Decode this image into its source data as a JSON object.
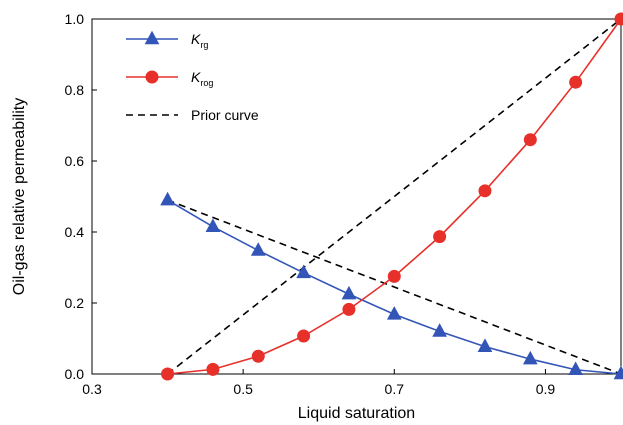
{
  "chart_data": {
    "type": "line",
    "xlabel": "Liquid saturation",
    "ylabel": "Oil-gas relative permeability",
    "xlim": [
      0.3,
      1.0
    ],
    "ylim": [
      0.0,
      1.0
    ],
    "x_ticks": [
      "0.3",
      "0.5",
      "0.7",
      "0.9"
    ],
    "y_ticks": [
      "0.0",
      "0.2",
      "0.4",
      "0.6",
      "0.8",
      "1.0"
    ],
    "x_tick_values": [
      0.3,
      0.5,
      0.7,
      0.9
    ],
    "y_tick_values": [
      0.0,
      0.2,
      0.4,
      0.6,
      0.8,
      1.0
    ],
    "grid": false,
    "legend_position": "top-left",
    "series": [
      {
        "name": "K_rg",
        "legend_main": "K",
        "legend_sub": "rg",
        "color": "#3355b8",
        "marker": "triangle",
        "line": "solid",
        "x": [
          0.4,
          0.46,
          0.52,
          0.58,
          0.64,
          0.7,
          0.76,
          0.82,
          0.88,
          0.94,
          1.0
        ],
        "y": [
          0.49,
          0.415,
          0.348,
          0.285,
          0.225,
          0.168,
          0.12,
          0.077,
          0.042,
          0.012,
          0.0
        ]
      },
      {
        "name": "K_rog",
        "legend_main": "K",
        "legend_sub": "rog",
        "color": "#e8302a",
        "marker": "circle",
        "line": "solid",
        "x": [
          0.4,
          0.46,
          0.52,
          0.58,
          0.64,
          0.7,
          0.76,
          0.82,
          0.88,
          0.94,
          1.0
        ],
        "y": [
          0.0,
          0.013,
          0.05,
          0.107,
          0.182,
          0.275,
          0.387,
          0.516,
          0.66,
          0.822,
          1.0
        ]
      },
      {
        "name": "Prior curve",
        "legend_main": "Prior curve",
        "legend_sub": "",
        "color": "#000000",
        "marker": "none",
        "line": "dashed",
        "segments": [
          {
            "x": [
              0.4,
              1.0
            ],
            "y": [
              0.49,
              0.0
            ]
          },
          {
            "x": [
              0.4,
              1.0
            ],
            "y": [
              0.0,
              1.0
            ]
          }
        ]
      }
    ]
  }
}
